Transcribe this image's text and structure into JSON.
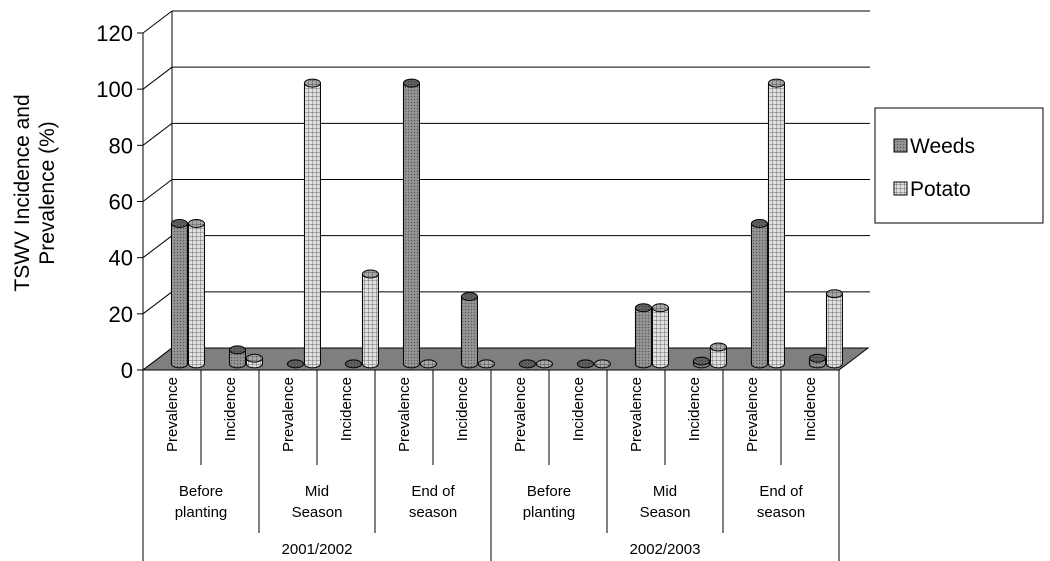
{
  "chart_data": {
    "type": "bar",
    "ylabel_lines": [
      "TSWV Incidence and",
      "Prevalence (%)"
    ],
    "ylim": [
      0,
      120
    ],
    "yticks": [
      0,
      20,
      40,
      60,
      80,
      100,
      120
    ],
    "grid": true,
    "legend_position": "right",
    "categories": [
      "Prevalence",
      "Incidence",
      "Prevalence",
      "Incidence",
      "Prevalence",
      "Incidence",
      "Prevalence",
      "Incidence",
      "Prevalence",
      "Incidence",
      "Prevalence",
      "Incidence"
    ],
    "stages": [
      {
        "lines": [
          "Before",
          "planting"
        ]
      },
      {
        "lines": [
          "Mid",
          "Season"
        ]
      },
      {
        "lines": [
          "End of",
          "season"
        ]
      },
      {
        "lines": [
          "Before",
          "planting"
        ]
      },
      {
        "lines": [
          "Mid",
          "Season"
        ]
      },
      {
        "lines": [
          "End of",
          "season"
        ]
      }
    ],
    "years": [
      "2001/2002",
      "2002/2003"
    ],
    "series": [
      {
        "name": "Weeds",
        "color": "#888888",
        "pattern": "dots",
        "values": [
          50,
          5,
          0,
          0,
          100,
          24,
          0,
          0,
          20,
          1,
          50,
          2
        ]
      },
      {
        "name": "Potato",
        "color": "#d9d9d9",
        "pattern": "grid",
        "values": [
          50,
          2,
          100,
          32,
          0,
          0,
          0,
          0,
          20,
          6,
          100,
          25
        ]
      }
    ]
  }
}
